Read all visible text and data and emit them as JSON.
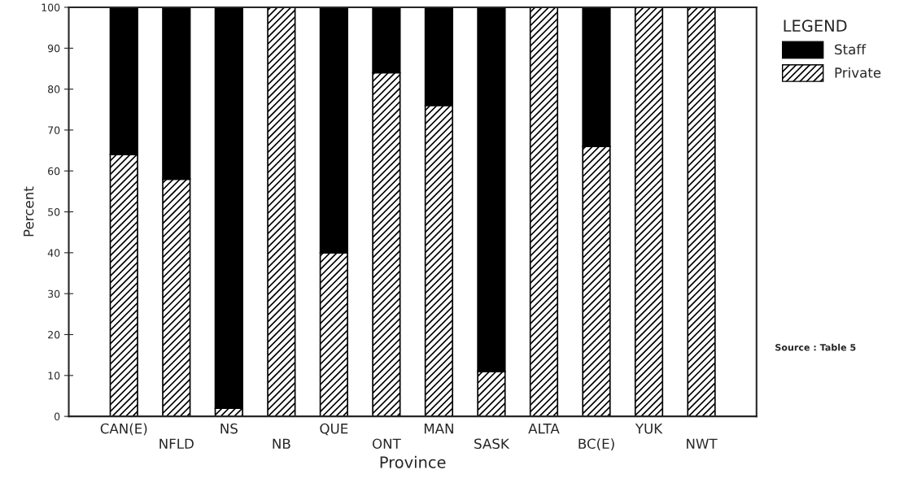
{
  "chart_data": {
    "type": "bar",
    "stacked": true,
    "xlabel": "Province",
    "ylabel": "Percent",
    "legend_title": "LEGEND",
    "legend": "top right",
    "grid": false,
    "categories": [
      "CAN(E)",
      "NFLD",
      "NS",
      "NB",
      "QUE",
      "ONT",
      "MAN",
      "SASK",
      "ALTA",
      "BC(E)",
      "YUK",
      "NWT"
    ],
    "series": [
      {
        "name": "Private",
        "color": "#000000",
        "values": [
          64,
          58,
          2,
          100,
          40,
          84,
          76,
          11,
          100,
          66,
          100,
          100
        ]
      },
      {
        "name": "Staff",
        "color": "#000000",
        "values": [
          36,
          42,
          98,
          0,
          60,
          16,
          24,
          89,
          0,
          34,
          0,
          0
        ]
      }
    ],
    "ylim": [
      0,
      100
    ],
    "yticks": [
      0,
      10,
      20,
      30,
      40,
      50,
      60,
      70,
      80,
      90,
      100
    ],
    "annotations": [
      "Source : Table 5"
    ]
  }
}
